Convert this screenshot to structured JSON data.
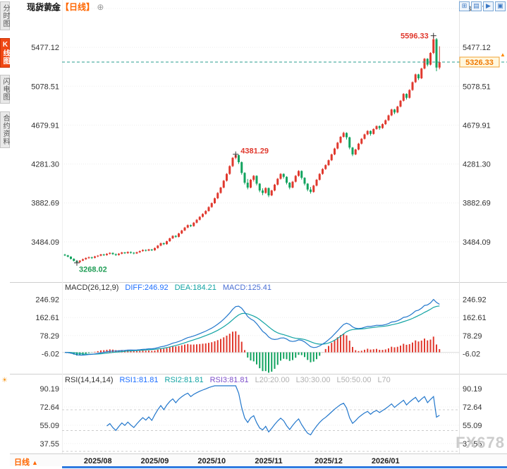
{
  "header": {
    "title": "现货黄金",
    "period": "【日线】",
    "plus_icon": "⊕"
  },
  "sidebar": {
    "tabs": [
      {
        "label": "分时图",
        "active": false
      },
      {
        "label": "K线图",
        "active": true
      },
      {
        "label": "闪电图",
        "active": false
      },
      {
        "label": "合约资料",
        "active": false
      }
    ]
  },
  "toolbar": {
    "icons": [
      {
        "name": "grid-2x2-icon",
        "glyph": "⊞"
      },
      {
        "name": "grid-rows-icon",
        "glyph": "▤"
      },
      {
        "name": "next-chart-icon",
        "glyph": "▶"
      },
      {
        "name": "panel-layout-icon",
        "glyph": "▣"
      }
    ]
  },
  "macd_header": {
    "name": "MACD(26,12,9)",
    "diff": "DIFF:246.92",
    "dea": "DEA:184.21",
    "macd": "MACD:125.41"
  },
  "rsi_header": {
    "icon": "☀",
    "name": "RSI(14,14,14)",
    "rsi1": "RSI1:81.81",
    "rsi2": "RSI2:81.81",
    "rsi3": "RSI3:81.81",
    "l20": "L20:20.00",
    "l30": "L30:30.00",
    "l50": "L50:50.00",
    "l70": "L70"
  },
  "bottom": {
    "period": "日线",
    "arrow": "▲"
  },
  "price_marker": {
    "label": "5326.33",
    "arrow": "▲"
  },
  "watermark": "FX678",
  "colors": {
    "up": "#e0392e",
    "down": "#12a35f",
    "accent": "#ff8800",
    "price_line": "#2a9d8f",
    "price_text": "#f07800",
    "price_box_border": "#f0a030",
    "price_box_bg": "#fff8e0",
    "diff": "#2277cc",
    "dea": "#11a3a3",
    "rsi": "#2277cc",
    "axis_text": "#333333",
    "grid": "#ededed",
    "level": "#cccccc",
    "separator": "#cfcfcf",
    "scrollbar": "#2f7ae0",
    "month_text": "#222222"
  },
  "chart_data": {
    "type": "candlestick",
    "title": "现货黄金 日线 (Spot Gold, Daily)",
    "x_tick_labels": [
      "2025/08",
      "2025/09",
      "2025/10",
      "2025/11",
      "2025/12",
      "2026/01"
    ],
    "x_tick_indices": [
      11,
      30,
      49,
      68,
      88,
      107
    ],
    "main": {
      "ylim": [
        3085.48,
        5875.73
      ],
      "yticks": [
        5875.73,
        5477.12,
        5078.51,
        4679.91,
        4281.3,
        3882.69,
        3484.09
      ],
      "last_price": 5326.33,
      "annotations": [
        {
          "label": "5596.33",
          "index": 123,
          "value": 5596.33,
          "color": "#e0392e",
          "side": "left"
        },
        {
          "label": "4381.29",
          "index": 57,
          "value": 4381.29,
          "color": "#e0392e",
          "side": "right"
        },
        {
          "label": "3268.02",
          "index": 4,
          "value": 3268.02,
          "color": "#1f9d55",
          "side": "below"
        }
      ],
      "candles": [
        [
          3352,
          3361,
          3338,
          3345
        ],
        [
          3345,
          3350,
          3325,
          3332
        ],
        [
          3332,
          3336,
          3302,
          3310
        ],
        [
          3310,
          3315,
          3282,
          3289
        ],
        [
          3289,
          3294,
          3268.02,
          3275
        ],
        [
          3275,
          3296,
          3270,
          3291
        ],
        [
          3291,
          3312,
          3286,
          3305
        ],
        [
          3305,
          3324,
          3299,
          3318
        ],
        [
          3318,
          3333,
          3310,
          3326
        ],
        [
          3326,
          3331,
          3308,
          3320
        ],
        [
          3320,
          3340,
          3314,
          3334
        ],
        [
          3334,
          3348,
          3327,
          3342
        ],
        [
          3342,
          3360,
          3336,
          3355
        ],
        [
          3355,
          3361,
          3339,
          3348
        ],
        [
          3348,
          3367,
          3342,
          3361
        ],
        [
          3361,
          3377,
          3354,
          3370
        ],
        [
          3370,
          3375,
          3350,
          3358
        ],
        [
          3358,
          3364,
          3340,
          3349
        ],
        [
          3349,
          3368,
          3343,
          3362
        ],
        [
          3362,
          3381,
          3356,
          3375
        ],
        [
          3375,
          3380,
          3359,
          3368
        ],
        [
          3368,
          3386,
          3361,
          3380
        ],
        [
          3380,
          3385,
          3363,
          3372
        ],
        [
          3372,
          3378,
          3356,
          3365
        ],
        [
          3365,
          3383,
          3359,
          3377
        ],
        [
          3377,
          3395,
          3370,
          3389
        ],
        [
          3389,
          3407,
          3383,
          3400
        ],
        [
          3400,
          3406,
          3385,
          3394
        ],
        [
          3394,
          3412,
          3388,
          3406
        ],
        [
          3406,
          3411,
          3389,
          3398
        ],
        [
          3398,
          3426,
          3392,
          3420
        ],
        [
          3420,
          3451,
          3414,
          3445
        ],
        [
          3445,
          3476,
          3438,
          3470
        ],
        [
          3470,
          3476,
          3451,
          3460
        ],
        [
          3460,
          3496,
          3454,
          3490
        ],
        [
          3490,
          3526,
          3484,
          3520
        ],
        [
          3520,
          3551,
          3513,
          3545
        ],
        [
          3545,
          3552,
          3526,
          3535
        ],
        [
          3535,
          3576,
          3529,
          3570
        ],
        [
          3570,
          3607,
          3563,
          3600
        ],
        [
          3600,
          3637,
          3594,
          3630
        ],
        [
          3630,
          3662,
          3623,
          3655
        ],
        [
          3655,
          3661,
          3636,
          3645
        ],
        [
          3645,
          3687,
          3639,
          3680
        ],
        [
          3680,
          3717,
          3673,
          3710
        ],
        [
          3710,
          3747,
          3703,
          3740
        ],
        [
          3740,
          3777,
          3733,
          3770
        ],
        [
          3770,
          3808,
          3763,
          3800
        ],
        [
          3800,
          3848,
          3793,
          3840
        ],
        [
          3840,
          3888,
          3833,
          3880
        ],
        [
          3880,
          3938,
          3873,
          3930
        ],
        [
          3930,
          3993,
          3922,
          3985
        ],
        [
          3985,
          4048,
          3977,
          4040
        ],
        [
          4040,
          4118,
          4032,
          4110
        ],
        [
          4110,
          4188,
          4101,
          4180
        ],
        [
          4180,
          4268,
          4171,
          4260
        ],
        [
          4260,
          4353,
          4250,
          4345
        ],
        [
          4345,
          4381.29,
          4330,
          4372
        ],
        [
          4372,
          4378,
          4282,
          4300
        ],
        [
          4300,
          4308,
          4172,
          4190
        ],
        [
          4190,
          4198,
          4072,
          4090
        ],
        [
          4090,
          4128,
          4022,
          4040
        ],
        [
          4040,
          4128,
          4032,
          4120
        ],
        [
          4120,
          4168,
          4102,
          4160
        ],
        [
          4160,
          4166,
          4062,
          4080
        ],
        [
          4080,
          4086,
          3992,
          4010
        ],
        [
          4010,
          4032,
          3962,
          3985
        ],
        [
          3985,
          4043,
          3977,
          4035
        ],
        [
          4035,
          4041,
          3942,
          3960
        ],
        [
          3960,
          4018,
          3952,
          4010
        ],
        [
          4010,
          4078,
          4002,
          4070
        ],
        [
          4070,
          4138,
          4062,
          4130
        ],
        [
          4130,
          4188,
          4122,
          4180
        ],
        [
          4180,
          4186,
          4132,
          4150
        ],
        [
          4150,
          4156,
          4072,
          4090
        ],
        [
          4090,
          4096,
          4022,
          4040
        ],
        [
          4040,
          4108,
          4032,
          4100
        ],
        [
          4100,
          4168,
          4092,
          4160
        ],
        [
          4160,
          4218,
          4152,
          4210
        ],
        [
          4210,
          4216,
          4122,
          4140
        ],
        [
          4140,
          4146,
          4062,
          4080
        ],
        [
          4080,
          4086,
          4002,
          4020
        ],
        [
          4020,
          4046,
          3978,
          3995
        ],
        [
          3995,
          4068,
          3987,
          4060
        ],
        [
          4060,
          4128,
          4052,
          4120
        ],
        [
          4120,
          4188,
          4112,
          4180
        ],
        [
          4180,
          4238,
          4172,
          4230
        ],
        [
          4230,
          4278,
          4222,
          4270
        ],
        [
          4270,
          4328,
          4262,
          4320
        ],
        [
          4320,
          4388,
          4312,
          4380
        ],
        [
          4380,
          4448,
          4372,
          4440
        ],
        [
          4440,
          4508,
          4432,
          4500
        ],
        [
          4500,
          4568,
          4492,
          4560
        ],
        [
          4560,
          4612,
          4552,
          4600
        ],
        [
          4600,
          4606,
          4532,
          4555
        ],
        [
          4555,
          4561,
          4432,
          4450
        ],
        [
          4450,
          4456,
          4362,
          4380
        ],
        [
          4380,
          4438,
          4372,
          4430
        ],
        [
          4430,
          4498,
          4422,
          4490
        ],
        [
          4490,
          4548,
          4482,
          4540
        ],
        [
          4540,
          4593,
          4532,
          4585
        ],
        [
          4585,
          4628,
          4577,
          4620
        ],
        [
          4620,
          4626,
          4572,
          4590
        ],
        [
          4590,
          4648,
          4582,
          4640
        ],
        [
          4640,
          4678,
          4632,
          4670
        ],
        [
          4670,
          4676,
          4632,
          4650
        ],
        [
          4650,
          4698,
          4642,
          4690
        ],
        [
          4690,
          4738,
          4682,
          4730
        ],
        [
          4730,
          4788,
          4722,
          4780
        ],
        [
          4780,
          4848,
          4772,
          4840
        ],
        [
          4840,
          4846,
          4792,
          4810
        ],
        [
          4810,
          4878,
          4802,
          4870
        ],
        [
          4870,
          4938,
          4862,
          4930
        ],
        [
          4930,
          5008,
          4922,
          5000
        ],
        [
          5000,
          5006,
          4942,
          4960
        ],
        [
          4960,
          5048,
          4952,
          5040
        ],
        [
          5040,
          5128,
          5032,
          5120
        ],
        [
          5120,
          5208,
          5112,
          5200
        ],
        [
          5200,
          5206,
          5142,
          5160
        ],
        [
          5160,
          5268,
          5152,
          5260
        ],
        [
          5260,
          5368,
          5252,
          5360
        ],
        [
          5360,
          5366,
          5282,
          5300
        ],
        [
          5300,
          5428,
          5292,
          5420
        ],
        [
          5420,
          5596.33,
          5408,
          5560
        ],
        [
          5560,
          5572,
          5232,
          5270
        ],
        [
          5270,
          5488,
          5252,
          5326.33
        ]
      ]
    },
    "macd": {
      "params": [
        26,
        12,
        9
      ],
      "diff": 246.92,
      "dea": 184.21,
      "macd": 125.41,
      "ylim": [
        -90.33,
        272
      ],
      "yticks": [
        246.92,
        162.61,
        78.29,
        -6.02
      ]
    },
    "rsi": {
      "params": [
        14,
        14,
        14
      ],
      "rsi1": 81.81,
      "rsi2": 81.81,
      "rsi3": 81.81,
      "levels": [
        70,
        50,
        30
      ],
      "ylim": [
        30,
        93
      ],
      "yticks": [
        90.19,
        72.64,
        55.09,
        37.55
      ]
    }
  }
}
